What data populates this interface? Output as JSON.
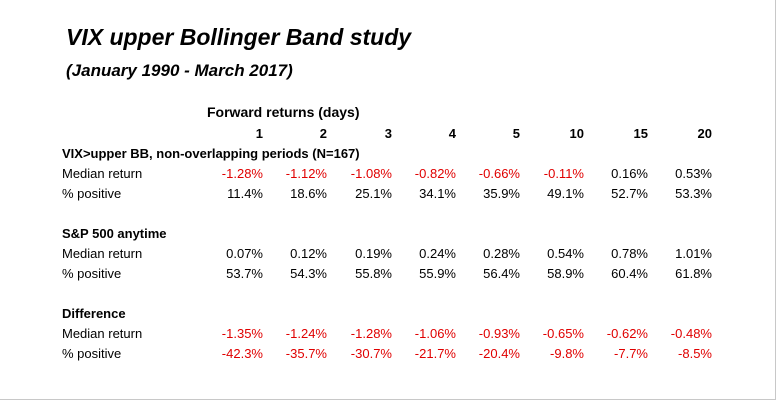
{
  "title": "VIX upper Bollinger Band study",
  "subtitle": "(January 1990 - March 2017)",
  "forward_header": "Forward returns (days)",
  "columns": [
    "1",
    "2",
    "3",
    "4",
    "5",
    "10",
    "15",
    "20"
  ],
  "sections": [
    {
      "heading": "VIX>upper BB, non-overlapping periods (N=167)",
      "rows": [
        {
          "label": "Median return",
          "values": [
            "-1.28%",
            "-1.12%",
            "-1.08%",
            "-0.82%",
            "-0.66%",
            "-0.11%",
            "0.16%",
            "0.53%"
          ]
        },
        {
          "label": "% positive",
          "values": [
            "11.4%",
            "18.6%",
            "25.1%",
            "34.1%",
            "35.9%",
            "49.1%",
            "52.7%",
            "53.3%"
          ]
        }
      ]
    },
    {
      "heading": "S&P 500 anytime",
      "rows": [
        {
          "label": "Median return",
          "values": [
            "0.07%",
            "0.12%",
            "0.19%",
            "0.24%",
            "0.28%",
            "0.54%",
            "0.78%",
            "1.01%"
          ]
        },
        {
          "label": "% positive",
          "values": [
            "53.7%",
            "54.3%",
            "55.8%",
            "55.9%",
            "56.4%",
            "58.9%",
            "60.4%",
            "61.8%"
          ]
        }
      ]
    },
    {
      "heading": "Difference",
      "rows": [
        {
          "label": "Median return",
          "values": [
            "-1.35%",
            "-1.24%",
            "-1.28%",
            "-1.06%",
            "-0.93%",
            "-0.65%",
            "-0.62%",
            "-0.48%"
          ]
        },
        {
          "label": "% positive",
          "values": [
            "-42.3%",
            "-35.7%",
            "-30.7%",
            "-21.7%",
            "-20.4%",
            "-9.8%",
            "-7.7%",
            "-8.5%"
          ]
        }
      ]
    }
  ],
  "colors": {
    "negative": "#e00000",
    "positive": "#000000"
  }
}
